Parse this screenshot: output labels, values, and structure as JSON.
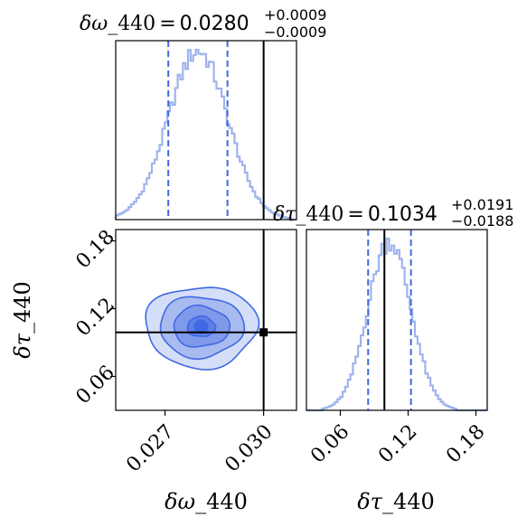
{
  "chart_data": {
    "type": "corner",
    "colors": {
      "posterior": "#4169e1",
      "truth": "#000000",
      "hist": "#9fb4ec"
    },
    "parameters": [
      {
        "symbol": "δω",
        "suffix": "_440",
        "axis_label": "δω_440",
        "title": {
          "lhs_sym": "δω",
          "lhs_sub": "_440",
          "eq": "=",
          "value": "0.0280",
          "plus": "+0.0009",
          "minus": "−0.0009"
        },
        "median": 0.028,
        "q16": 0.0271,
        "q84": 0.0289,
        "truth": 0.03,
        "range": [
          0.0255,
          0.031
        ],
        "ticks": [
          0.027,
          0.03
        ],
        "tick_labels": [
          "0.027",
          "0.030"
        ],
        "hist_sigma": 0.0009
      },
      {
        "symbol": "δτ",
        "suffix": "_440",
        "axis_label": "δτ_440",
        "title": {
          "lhs_sym": "δτ",
          "lhs_sub": "_440",
          "eq": "=",
          "value": "0.1034",
          "plus": "+0.0191",
          "minus": "−0.0188"
        },
        "median": 0.1034,
        "q16": 0.0846,
        "q84": 0.1225,
        "truth": 0.099,
        "range": [
          0.03,
          0.19
        ],
        "ticks": [
          0.06,
          0.12,
          0.18
        ],
        "tick_labels": [
          "0.06",
          "0.12",
          "0.18"
        ],
        "hist_sigma": 0.019
      }
    ],
    "joint": {
      "center": [
        0.0281,
        0.104
      ],
      "sigma": [
        0.00085,
        0.018
      ],
      "levels_sigma": [
        0.5,
        1.0,
        1.5,
        2.0
      ]
    },
    "grid": false
  }
}
